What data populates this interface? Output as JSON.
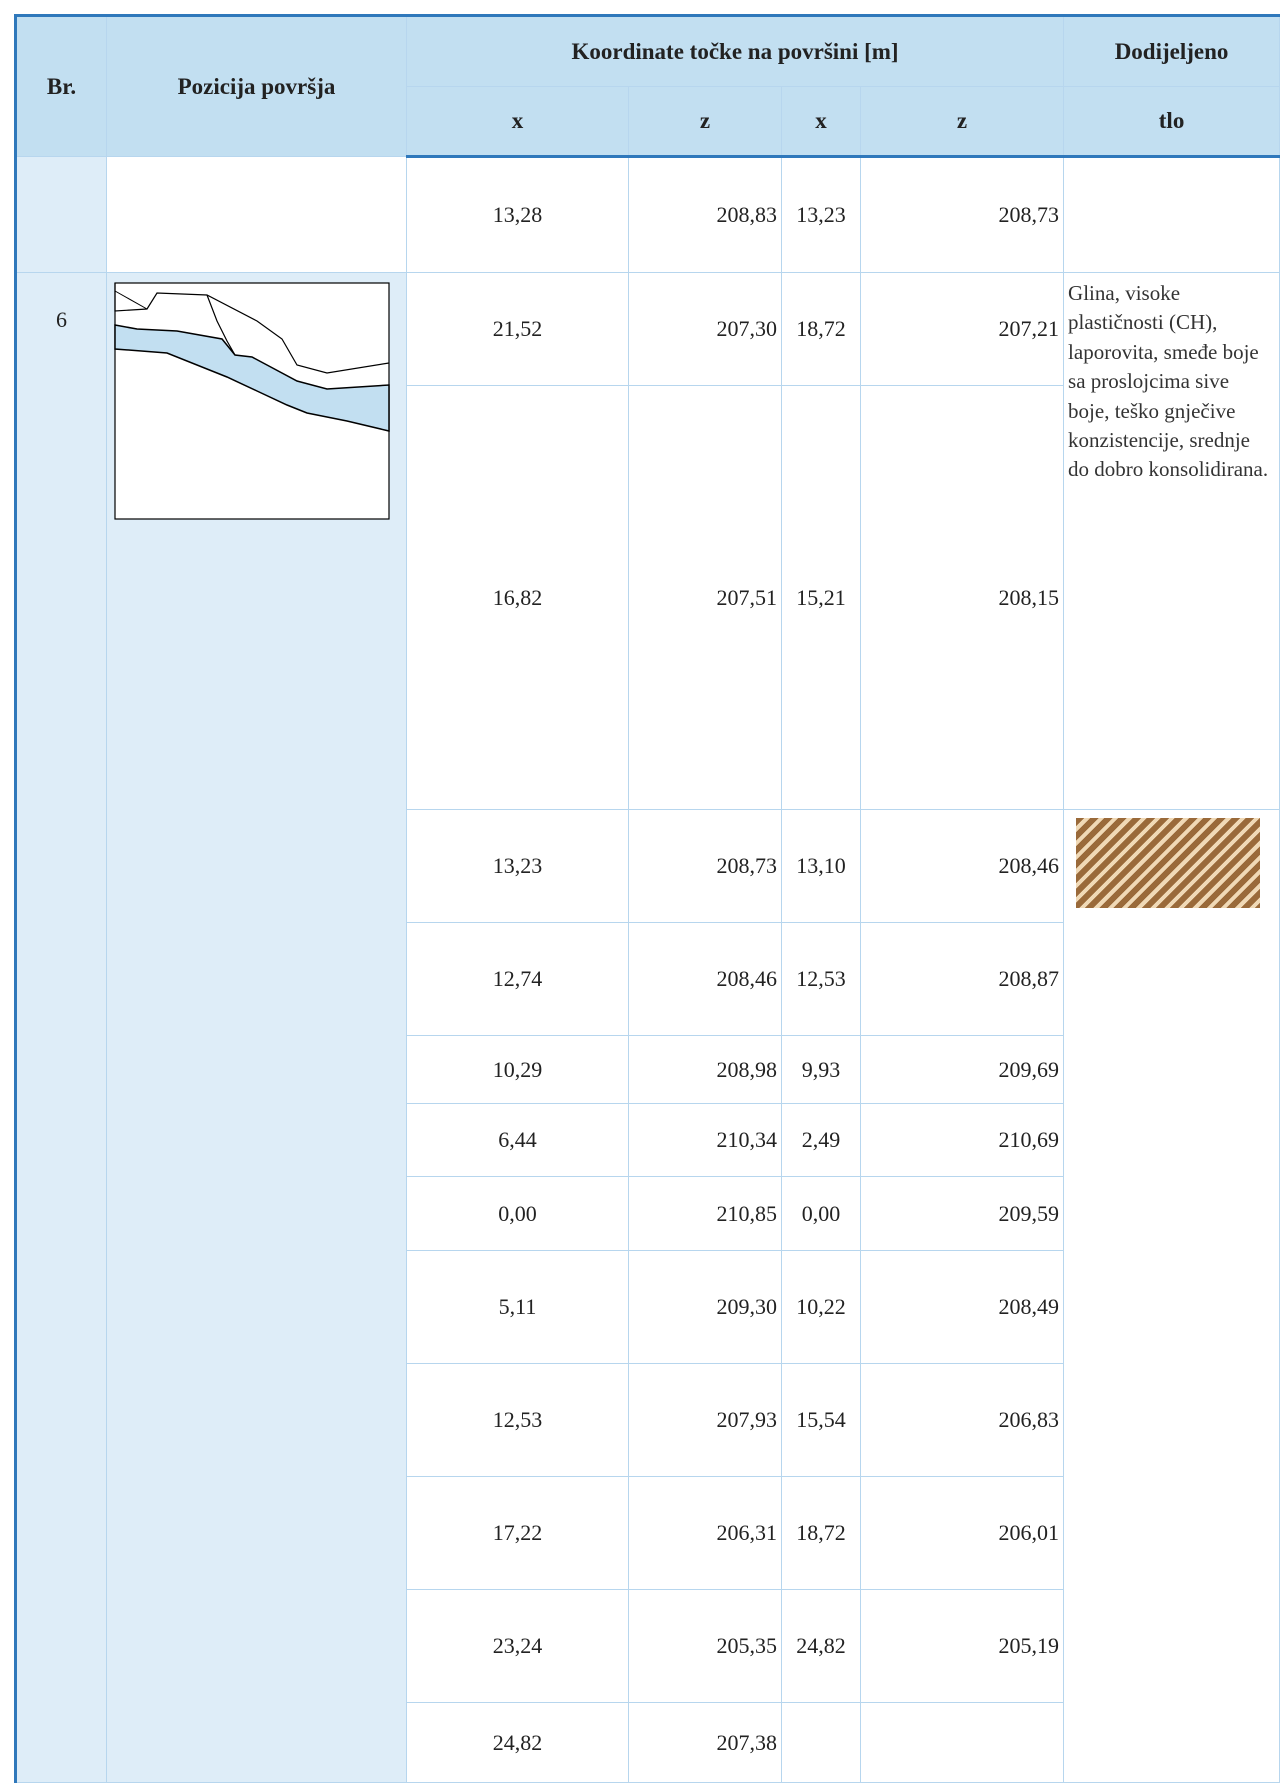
{
  "header": {
    "number": "Br.",
    "position": "Pozicija površja",
    "coordinates": "Koordinate točke na površini [m]",
    "axes": [
      "x",
      "z",
      "x",
      "z"
    ],
    "soil": [
      "Dodijeljeno",
      "tlo"
    ]
  },
  "group": {
    "number": "6",
    "soil": "Glina, visoke plastičnosti (CH), laporovita, smeđe boje sa proslojcima sive boje, teško gnječive konzistencije, srednje do dobro konsolidirana."
  },
  "rows": [
    [
      "13,28",
      "208,83",
      "13,23",
      "208,73"
    ],
    [
      "21,52",
      "207,30",
      "18,72",
      "207,21"
    ],
    [
      "16,82",
      "207,51",
      "15,21",
      "208,15"
    ],
    [
      "13,23",
      "208,73",
      "13,10",
      "208,46"
    ],
    [
      "12,74",
      "208,46",
      "12,53",
      "208,87"
    ],
    [
      "10,29",
      "208,98",
      "9,93",
      "209,69"
    ],
    [
      "6,44",
      "210,34",
      "2,49",
      "210,69"
    ],
    [
      "0,00",
      "210,85",
      "0,00",
      "209,59"
    ],
    [
      "5,11",
      "209,30",
      "10,22",
      "208,49"
    ],
    [
      "12,53",
      "207,93",
      "15,54",
      "206,83"
    ],
    [
      "17,22",
      "206,31",
      "18,72",
      "206,01"
    ],
    [
      "23,24",
      "205,35",
      "24,82",
      "205,19"
    ],
    [
      "24,82",
      "207,38"
    ]
  ]
}
